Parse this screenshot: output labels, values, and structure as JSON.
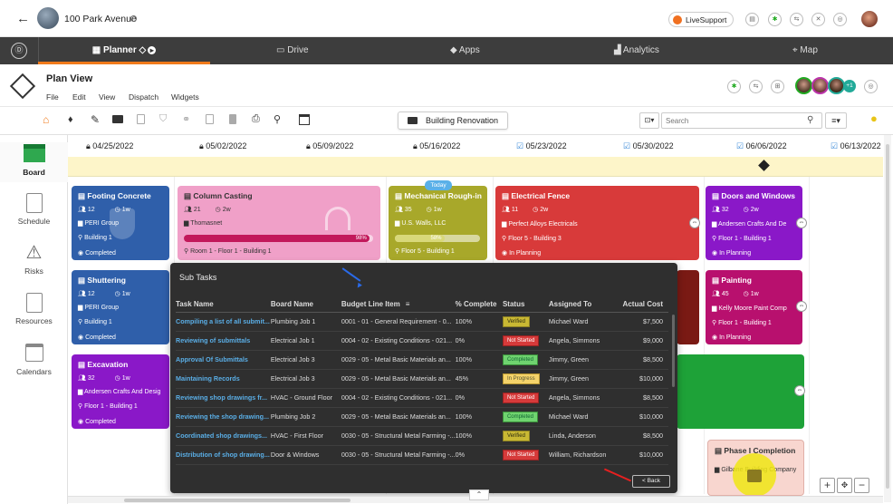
{
  "header": {
    "project": "100 Park Avenue",
    "support": "LiveSupport"
  },
  "nav": {
    "planner": "Planner",
    "drive": "Drive",
    "apps": "Apps",
    "analytics": "Analytics",
    "map": "Map"
  },
  "planview": {
    "title": "Plan View",
    "menus": [
      "File",
      "Edit",
      "View",
      "Dispatch",
      "Widgets"
    ],
    "avatar_extra": "+1"
  },
  "toolbar": {
    "project_button": "Building Renovation",
    "search_placeholder": "Search"
  },
  "sidebar": {
    "board": "Board",
    "schedule": "Schedule",
    "risks": "Risks",
    "resources": "Resources",
    "calendars": "Calendars"
  },
  "dates": [
    "04/25/2022",
    "05/02/2022",
    "05/09/2022",
    "05/16/2022",
    "05/23/2022",
    "05/30/2022",
    "06/06/2022",
    "06/13/2022"
  ],
  "today_label": "Today",
  "cards": {
    "footing": {
      "title": "Footing Concrete",
      "people": "12",
      "dur": "1w",
      "company": "PERI Group",
      "loc": "Building 1",
      "status": "Completed"
    },
    "column": {
      "title": "Column Casting",
      "people": "21",
      "dur": "2w",
      "company": "Thomasnet",
      "pct": "98%",
      "loc": "Room 1 - Floor 1 - Building 1"
    },
    "mech": {
      "title": "Mechanical Rough-in",
      "people": "35",
      "dur": "1w",
      "company": "U.S. Walls, LLC",
      "pct": "58%",
      "loc": "Floor 5 - Building 1"
    },
    "elec": {
      "title": "Electrical Fence",
      "people": "11",
      "dur": "2w",
      "company": "Perfect Alloys Electricals",
      "loc": "Floor 5 - Building 3",
      "status": "In Planning"
    },
    "doors": {
      "title": "Doors and Windows",
      "people": "32",
      "dur": "2w",
      "company": "Andersen Crafts And De",
      "loc": "Floor 1 - Building 1",
      "status": "In Planning"
    },
    "shuttering": {
      "title": "Shuttering",
      "people": "12",
      "dur": "1w",
      "company": "PERI Group",
      "loc": "Building 1",
      "status": "Completed"
    },
    "painting": {
      "title": "Painting",
      "people": "45",
      "dur": "1w",
      "company": "Kelly Moore Paint Comp",
      "loc": "Floor 1 - Building 1",
      "status": "In Planning"
    },
    "excavation": {
      "title": "Excavation",
      "people": "32",
      "dur": "1w",
      "company": "Andersen Crafts And Desig",
      "loc": "Floor 1 - Building 1",
      "status": "Completed"
    },
    "phase": {
      "title": "Phase I Completion",
      "company": "Gilbane Building Company"
    }
  },
  "subtasks": {
    "title": "Sub Tasks",
    "columns": [
      "Task Name",
      "Board Name",
      "Budget Line Item",
      "% Complete",
      "Status",
      "Assigned To",
      "Actual Cost"
    ],
    "rows": [
      {
        "task": "Compiling a list of all submit...",
        "board": "Plumbing Job 1",
        "budget": "0001 - 01 - General Requirement - 0...",
        "pct": "100%",
        "status": "Verified",
        "assigned": "Michael Ward",
        "cost": "$7,500"
      },
      {
        "task": "Reviewing of submittals",
        "board": "Electrical Job 1",
        "budget": "0004 - 02 - Existing Conditions - 021...",
        "pct": "0%",
        "status": "Not Started",
        "assigned": "Angela, Simmons",
        "cost": "$9,000"
      },
      {
        "task": "Approval Of Submittals",
        "board": "Electrical Job 3",
        "budget": "0029 - 05 - Metal Basic Materials an...",
        "pct": "100%",
        "status": "Completed",
        "assigned": "Jimmy, Green",
        "cost": "$8,500"
      },
      {
        "task": "Maintaining Records",
        "board": "Electrical Job 3",
        "budget": "0029 - 05 - Metal Basic Materials an...",
        "pct": "45%",
        "status": "In Progress",
        "assigned": "Jimmy, Green",
        "cost": "$10,000"
      },
      {
        "task": "Reviewing shop drawings fr...",
        "board": "HVAC - Ground Floor",
        "budget": "0004 - 02 - Existing Conditions - 021...",
        "pct": "0%",
        "status": "Not Started",
        "assigned": "Angela, Simmons",
        "cost": "$8,500"
      },
      {
        "task": "Reviewing the shop drawing...",
        "board": "Plumbing Job 2",
        "budget": "0029 - 05 - Metal Basic Materials an...",
        "pct": "100%",
        "status": "Completed",
        "assigned": "Michael Ward",
        "cost": "$10,000"
      },
      {
        "task": "Coordinated shop drawings...",
        "board": "HVAC - First Floor",
        "budget": "0030 - 05 - Structural Metal Farming -...",
        "pct": "100%",
        "status": "Verified",
        "assigned": "Linda, Anderson",
        "cost": "$8,500"
      },
      {
        "task": "Distribution of shop drawing...",
        "board": "Door & Windows",
        "budget": "0030 - 05 - Structural Metal Farming -...",
        "pct": "0%",
        "status": "Not Started",
        "assigned": "William, Richardson",
        "cost": "$10,000"
      }
    ],
    "back": "< Back"
  }
}
